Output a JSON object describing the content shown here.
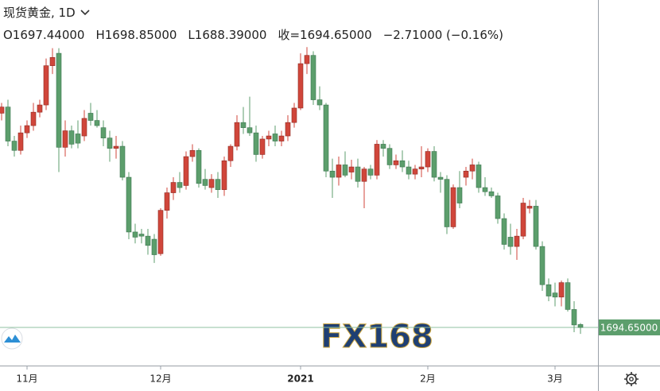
{
  "chart_data": {
    "type": "candlestick",
    "title": "现货黄金, 1D",
    "ohlc_text": [
      "O1697.44000",
      "H1698.85000",
      "L1688.39000",
      "收=1694.65000",
      "−2.71000 (−0.16%)"
    ],
    "watermark": "FX168",
    "last_price": {
      "value": 1694.65,
      "label": "1694.65000"
    },
    "up_color": "#d0463b",
    "down_color": "#5c9e6c",
    "ylim": [
      1657.7,
      2011.6
    ],
    "categories": [
      null,
      null,
      null,
      null,
      "11月",
      null,
      null,
      null,
      null,
      null,
      null,
      null,
      null,
      null,
      null,
      null,
      null,
      null,
      null,
      null,
      null,
      null,
      null,
      null,
      null,
      "12月",
      null,
      null,
      null,
      null,
      null,
      null,
      null,
      null,
      null,
      null,
      null,
      null,
      null,
      null,
      null,
      null,
      null,
      null,
      null,
      null,
      null,
      "2021",
      null,
      null,
      null,
      null,
      null,
      null,
      null,
      null,
      null,
      null,
      null,
      null,
      null,
      null,
      null,
      null,
      null,
      null,
      null,
      "2月",
      null,
      null,
      null,
      null,
      null,
      null,
      null,
      null,
      null,
      null,
      null,
      null,
      null,
      null,
      null,
      null,
      null,
      null,
      null,
      "3月",
      null,
      null,
      null,
      null
    ],
    "open": [
      1902,
      1908,
      1875,
      1866,
      1883,
      1890,
      1903,
      1910,
      1948,
      1960,
      1869,
      1885,
      1882,
      1880,
      1902,
      1895,
      1888,
      1878,
      1868,
      1870,
      1840,
      1787,
      1785,
      1783,
      1780,
      1766,
      1808,
      1825,
      1835,
      1832,
      1860,
      1866,
      1838,
      1830,
      1838,
      1828,
      1856,
      1870,
      1893,
      1888,
      1883,
      1862,
      1877,
      1882,
      1875,
      1880,
      1893,
      1907,
      1950,
      1958,
      1915,
      1910,
      1846,
      1840,
      1852,
      1845,
      1850,
      1836,
      1848,
      1842,
      1872,
      1868,
      1852,
      1856,
      1850,
      1843,
      1848,
      1850,
      1865,
      1840,
      1838,
      1792,
      1830,
      1840,
      1846,
      1852,
      1830,
      1826,
      1822,
      1800,
      1782,
      1773,
      1783,
      1810,
      1812,
      1773,
      1736,
      1728,
      1724,
      1738,
      1712,
      1697.44
    ],
    "high": [
      1912,
      1915,
      1880,
      1890,
      1895,
      1912,
      1915,
      1955,
      1965,
      1965,
      1895,
      1890,
      1895,
      1905,
      1912,
      1905,
      1895,
      1885,
      1880,
      1875,
      1845,
      1795,
      1790,
      1790,
      1785,
      1810,
      1830,
      1840,
      1845,
      1865,
      1872,
      1868,
      1848,
      1843,
      1845,
      1860,
      1872,
      1900,
      1908,
      1918,
      1890,
      1880,
      1885,
      1890,
      1885,
      1900,
      1912,
      1960,
      1966,
      1962,
      1928,
      1912,
      1858,
      1860,
      1865,
      1857,
      1858,
      1850,
      1852,
      1876,
      1876,
      1872,
      1862,
      1866,
      1856,
      1852,
      1870,
      1868,
      1870,
      1845,
      1842,
      1833,
      1846,
      1850,
      1858,
      1855,
      1840,
      1830,
      1825,
      1805,
      1795,
      1790,
      1820,
      1818,
      1818,
      1778,
      1742,
      1738,
      1740,
      1742,
      1720,
      1698.85
    ],
    "low": [
      1895,
      1870,
      1860,
      1862,
      1878,
      1885,
      1898,
      1905,
      1940,
      1845,
      1860,
      1868,
      1868,
      1875,
      1890,
      1888,
      1870,
      1855,
      1858,
      1837,
      1780,
      1776,
      1776,
      1765,
      1757,
      1764,
      1800,
      1818,
      1825,
      1828,
      1855,
      1830,
      1828,
      1825,
      1820,
      1822,
      1850,
      1866,
      1882,
      1880,
      1855,
      1858,
      1870,
      1870,
      1870,
      1875,
      1888,
      1905,
      1940,
      1910,
      1905,
      1840,
      1820,
      1832,
      1840,
      1838,
      1830,
      1810,
      1838,
      1838,
      1860,
      1848,
      1848,
      1845,
      1838,
      1838,
      1840,
      1845,
      1836,
      1825,
      1785,
      1790,
      1810,
      1832,
      1838,
      1825,
      1822,
      1820,
      1795,
      1770,
      1765,
      1760,
      1780,
      1805,
      1770,
      1730,
      1720,
      1715,
      1715,
      1710,
      1690,
      1688.39
    ],
    "close": [
      1908,
      1875,
      1866,
      1883,
      1890,
      1903,
      1910,
      1948,
      1956,
      1869,
      1885,
      1872,
      1873,
      1897,
      1895,
      1890,
      1878,
      1868,
      1870,
      1840,
      1787,
      1782,
      1783,
      1774,
      1765,
      1808,
      1825,
      1835,
      1830,
      1860,
      1866,
      1834,
      1832,
      1838,
      1828,
      1856,
      1870,
      1893,
      1888,
      1883,
      1862,
      1877,
      1880,
      1875,
      1880,
      1893,
      1907,
      1950,
      1958,
      1915,
      1910,
      1846,
      1840,
      1852,
      1842,
      1850,
      1836,
      1848,
      1842,
      1872,
      1868,
      1852,
      1856,
      1850,
      1843,
      1848,
      1850,
      1865,
      1840,
      1838,
      1792,
      1830,
      1815,
      1846,
      1852,
      1830,
      1826,
      1822,
      1800,
      1775,
      1773,
      1783,
      1815,
      1812,
      1773,
      1736,
      1725,
      1724,
      1738,
      1712,
      1697,
      1694.65
    ]
  }
}
